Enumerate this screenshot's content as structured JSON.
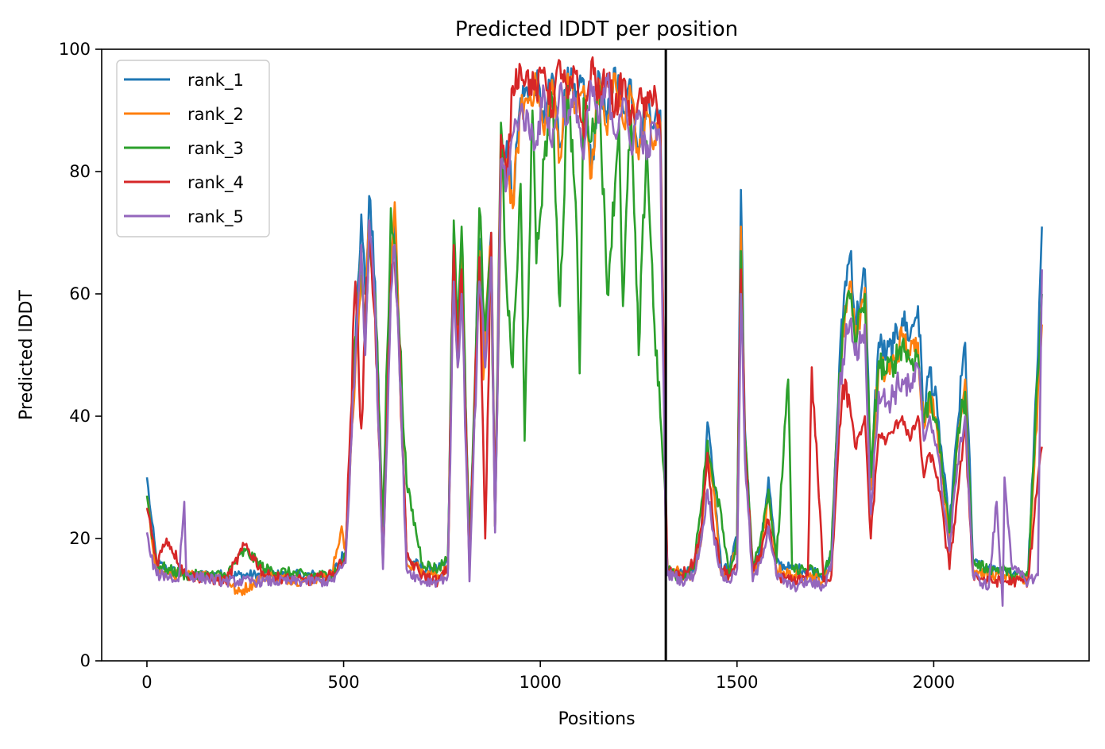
{
  "chart_data": {
    "type": "line",
    "title": "Predicted lDDT per position",
    "xlabel": "Positions",
    "ylabel": "Predicted lDDT",
    "xlim": [
      -115,
      2395
    ],
    "ylim": [
      0,
      100
    ],
    "x_ticks": [
      0,
      500,
      1000,
      1500,
      2000
    ],
    "y_ticks": [
      0,
      20,
      40,
      60,
      80,
      100
    ],
    "grid": false,
    "legend_position": "top-left",
    "vertical_line_at": 1319,
    "vertical_line_color": "#000000",
    "series": [
      {
        "name": "rank_1",
        "color": "#1f77b4",
        "x": [
          0,
          10,
          25,
          50,
          100,
          200,
          300,
          400,
          470,
          505,
          530,
          545,
          555,
          565,
          580,
          600,
          620,
          630,
          640,
          660,
          700,
          740,
          765,
          780,
          790,
          800,
          820,
          845,
          860,
          875,
          885,
          900,
          915,
          930,
          950,
          990,
          1010,
          1030,
          1050,
          1070,
          1090,
          1110,
          1130,
          1150,
          1170,
          1190,
          1210,
          1230,
          1250,
          1270,
          1290,
          1305,
          1318,
          1323,
          1340,
          1360,
          1390,
          1410,
          1425,
          1440,
          1460,
          1480,
          1500,
          1510,
          1520,
          1540,
          1560,
          1580,
          1600,
          1640,
          1680,
          1720,
          1740,
          1760,
          1775,
          1790,
          1800,
          1815,
          1825,
          1840,
          1860,
          1880,
          1900,
          1920,
          1940,
          1960,
          1975,
          1990,
          2010,
          2040,
          2060,
          2080,
          2100,
          2140,
          2180,
          2200,
          2240,
          2265,
          2275
        ],
        "y": [
          30,
          24,
          16,
          15,
          14,
          14,
          14,
          14,
          14,
          18,
          52,
          73,
          60,
          76,
          62,
          17,
          64,
          73,
          55,
          17,
          15,
          15,
          16,
          70,
          50,
          68,
          16,
          69,
          48,
          70,
          22,
          80,
          85,
          76,
          92,
          95,
          88,
          96,
          84,
          97,
          91,
          95,
          80,
          96,
          88,
          97,
          90,
          95,
          84,
          92,
          88,
          90,
          28,
          15,
          15,
          14,
          15,
          22,
          39,
          30,
          15,
          15,
          20,
          77,
          38,
          15,
          18,
          30,
          16,
          15,
          15,
          14,
          17,
          48,
          62,
          67,
          55,
          60,
          64,
          30,
          52,
          50,
          52,
          56,
          53,
          58,
          40,
          48,
          40,
          22,
          38,
          52,
          16,
          15,
          15,
          14,
          14,
          50,
          71
        ]
      },
      {
        "name": "rank_2",
        "color": "#ff7f0e",
        "x": [
          0,
          10,
          25,
          50,
          100,
          200,
          230,
          300,
          400,
          470,
          495,
          505,
          530,
          545,
          555,
          565,
          580,
          600,
          620,
          630,
          640,
          660,
          700,
          740,
          765,
          780,
          790,
          800,
          820,
          845,
          855,
          860,
          875,
          885,
          900,
          915,
          930,
          950,
          990,
          1010,
          1030,
          1050,
          1070,
          1090,
          1110,
          1130,
          1150,
          1170,
          1190,
          1210,
          1230,
          1250,
          1270,
          1290,
          1305,
          1318,
          1323,
          1340,
          1360,
          1390,
          1410,
          1425,
          1440,
          1460,
          1480,
          1500,
          1510,
          1520,
          1540,
          1560,
          1580,
          1600,
          1640,
          1680,
          1720,
          1740,
          1760,
          1775,
          1790,
          1800,
          1815,
          1825,
          1840,
          1860,
          1880,
          1900,
          1920,
          1940,
          1960,
          1975,
          1990,
          2010,
          2040,
          2060,
          2080,
          2100,
          2140,
          2180,
          2200,
          2240,
          2265,
          2275
        ],
        "y": [
          27,
          21,
          15,
          14,
          14,
          14,
          11,
          14,
          13,
          14,
          22,
          18,
          48,
          63,
          56,
          72,
          58,
          17,
          63,
          75,
          55,
          16,
          15,
          14,
          15,
          68,
          48,
          66,
          15,
          67,
          46,
          55,
          68,
          22,
          78,
          82,
          74,
          90,
          94,
          86,
          95,
          82,
          96,
          90,
          94,
          79,
          95,
          86,
          96,
          88,
          93,
          82,
          90,
          85,
          88,
          26,
          15,
          15,
          14,
          14,
          20,
          34,
          28,
          14,
          14,
          19,
          71,
          36,
          14,
          17,
          27,
          15,
          14,
          14,
          13,
          16,
          44,
          58,
          62,
          52,
          58,
          61,
          28,
          48,
          47,
          49,
          53,
          50,
          52,
          38,
          44,
          37,
          20,
          35,
          46,
          15,
          14,
          14,
          13,
          13,
          44,
          55
        ]
      },
      {
        "name": "rank_3",
        "color": "#2ca02c",
        "x": [
          0,
          10,
          25,
          50,
          100,
          200,
          250,
          300,
          400,
          470,
          505,
          530,
          545,
          555,
          565,
          580,
          600,
          620,
          630,
          640,
          660,
          700,
          740,
          765,
          780,
          790,
          800,
          820,
          845,
          860,
          875,
          885,
          900,
          915,
          930,
          950,
          960,
          980,
          990,
          1010,
          1030,
          1050,
          1070,
          1090,
          1100,
          1110,
          1130,
          1150,
          1170,
          1190,
          1200,
          1210,
          1230,
          1250,
          1270,
          1290,
          1305,
          1318,
          1323,
          1340,
          1360,
          1390,
          1410,
          1425,
          1440,
          1460,
          1480,
          1500,
          1510,
          1520,
          1540,
          1560,
          1580,
          1600,
          1630,
          1640,
          1680,
          1720,
          1740,
          1760,
          1775,
          1790,
          1800,
          1815,
          1825,
          1840,
          1860,
          1880,
          1900,
          1920,
          1940,
          1960,
          1975,
          1990,
          2010,
          2040,
          2060,
          2080,
          2100,
          2140,
          2180,
          2200,
          2240,
          2265,
          2275
        ],
        "y": [
          27,
          22,
          16,
          15,
          14,
          14,
          18,
          15,
          14,
          14,
          17,
          53,
          67,
          52,
          70,
          60,
          22,
          74,
          68,
          56,
          29,
          16,
          15,
          17,
          72,
          55,
          71,
          17,
          74,
          54,
          67,
          22,
          88,
          60,
          48,
          78,
          36,
          90,
          65,
          82,
          92,
          58,
          94,
          75,
          47,
          92,
          85,
          94,
          60,
          78,
          88,
          58,
          90,
          50,
          85,
          55,
          40,
          27,
          15,
          14,
          14,
          15,
          26,
          36,
          29,
          24,
          14,
          20,
          67,
          37,
          16,
          20,
          28,
          16,
          46,
          15,
          15,
          14,
          18,
          47,
          57,
          60,
          52,
          57,
          60,
          30,
          49,
          47,
          49,
          52,
          49,
          50,
          39,
          44,
          38,
          21,
          36,
          44,
          16,
          15,
          15,
          14,
          14,
          47,
          60
        ]
      },
      {
        "name": "rank_4",
        "color": "#d62728",
        "x": [
          0,
          10,
          25,
          50,
          100,
          200,
          250,
          300,
          400,
          470,
          505,
          530,
          545,
          555,
          565,
          580,
          600,
          620,
          630,
          640,
          660,
          700,
          740,
          765,
          780,
          790,
          800,
          820,
          845,
          860,
          875,
          885,
          900,
          915,
          930,
          950,
          990,
          1010,
          1030,
          1050,
          1070,
          1090,
          1110,
          1130,
          1150,
          1170,
          1190,
          1210,
          1230,
          1250,
          1270,
          1290,
          1305,
          1318,
          1323,
          1340,
          1360,
          1390,
          1410,
          1425,
          1440,
          1460,
          1480,
          1500,
          1510,
          1520,
          1540,
          1560,
          1580,
          1600,
          1640,
          1680,
          1690,
          1720,
          1740,
          1760,
          1775,
          1790,
          1800,
          1815,
          1825,
          1840,
          1860,
          1880,
          1900,
          1920,
          1940,
          1960,
          1975,
          1990,
          2010,
          2040,
          2060,
          2080,
          2100,
          2140,
          2180,
          2200,
          2240,
          2265,
          2275
        ],
        "y": [
          25,
          22,
          16,
          20,
          14,
          13,
          19,
          14,
          13,
          14,
          17,
          62,
          38,
          55,
          70,
          56,
          16,
          62,
          65,
          53,
          17,
          14,
          13,
          15,
          68,
          50,
          64,
          15,
          66,
          20,
          70,
          22,
          86,
          78,
          94,
          97,
          93,
          97,
          90,
          98,
          92,
          96,
          86,
          98,
          92,
          96,
          90,
          95,
          88,
          92,
          90,
          94,
          86,
          30,
          15,
          14,
          14,
          16,
          22,
          34,
          22,
          15,
          14,
          15,
          64,
          35,
          15,
          17,
          23,
          14,
          13,
          14,
          48,
          13,
          14,
          38,
          46,
          40,
          35,
          37,
          40,
          20,
          37,
          36,
          38,
          40,
          36,
          40,
          30,
          34,
          30,
          15,
          27,
          38,
          14,
          13,
          13,
          13,
          13,
          30,
          35
        ]
      },
      {
        "name": "rank_5",
        "color": "#9467bd",
        "x": [
          0,
          10,
          25,
          50,
          80,
          95,
          100,
          200,
          300,
          400,
          470,
          505,
          530,
          545,
          555,
          565,
          580,
          600,
          620,
          630,
          640,
          660,
          700,
          740,
          765,
          780,
          790,
          800,
          820,
          845,
          860,
          875,
          885,
          900,
          915,
          930,
          950,
          990,
          1010,
          1030,
          1050,
          1070,
          1090,
          1110,
          1130,
          1150,
          1170,
          1190,
          1210,
          1230,
          1250,
          1270,
          1290,
          1305,
          1318,
          1323,
          1340,
          1360,
          1390,
          1410,
          1425,
          1440,
          1460,
          1480,
          1500,
          1510,
          1520,
          1540,
          1560,
          1580,
          1600,
          1640,
          1680,
          1720,
          1740,
          1760,
          1775,
          1790,
          1800,
          1815,
          1825,
          1840,
          1860,
          1880,
          1900,
          1920,
          1940,
          1960,
          1975,
          1990,
          2010,
          2040,
          2060,
          2080,
          2100,
          2140,
          2160,
          2175,
          2180,
          2200,
          2240,
          2265,
          2275
        ],
        "y": [
          21,
          17,
          14,
          14,
          13,
          26,
          14,
          13,
          13,
          13,
          13,
          16,
          50,
          68,
          50,
          72,
          58,
          15,
          60,
          68,
          52,
          15,
          13,
          13,
          14,
          62,
          48,
          60,
          13,
          62,
          48,
          66,
          21,
          82,
          78,
          86,
          90,
          85,
          93,
          84,
          94,
          88,
          92,
          82,
          94,
          88,
          95,
          86,
          92,
          84,
          90,
          82,
          88,
          84,
          24,
          14,
          14,
          13,
          14,
          20,
          28,
          21,
          14,
          13,
          15,
          60,
          33,
          13,
          16,
          22,
          14,
          12,
          13,
          12,
          16,
          44,
          52,
          56,
          50,
          52,
          55,
          24,
          44,
          42,
          44,
          46,
          44,
          48,
          36,
          40,
          34,
          18,
          32,
          40,
          14,
          12,
          26,
          9,
          30,
          15,
          13,
          14,
          64
        ]
      }
    ]
  }
}
